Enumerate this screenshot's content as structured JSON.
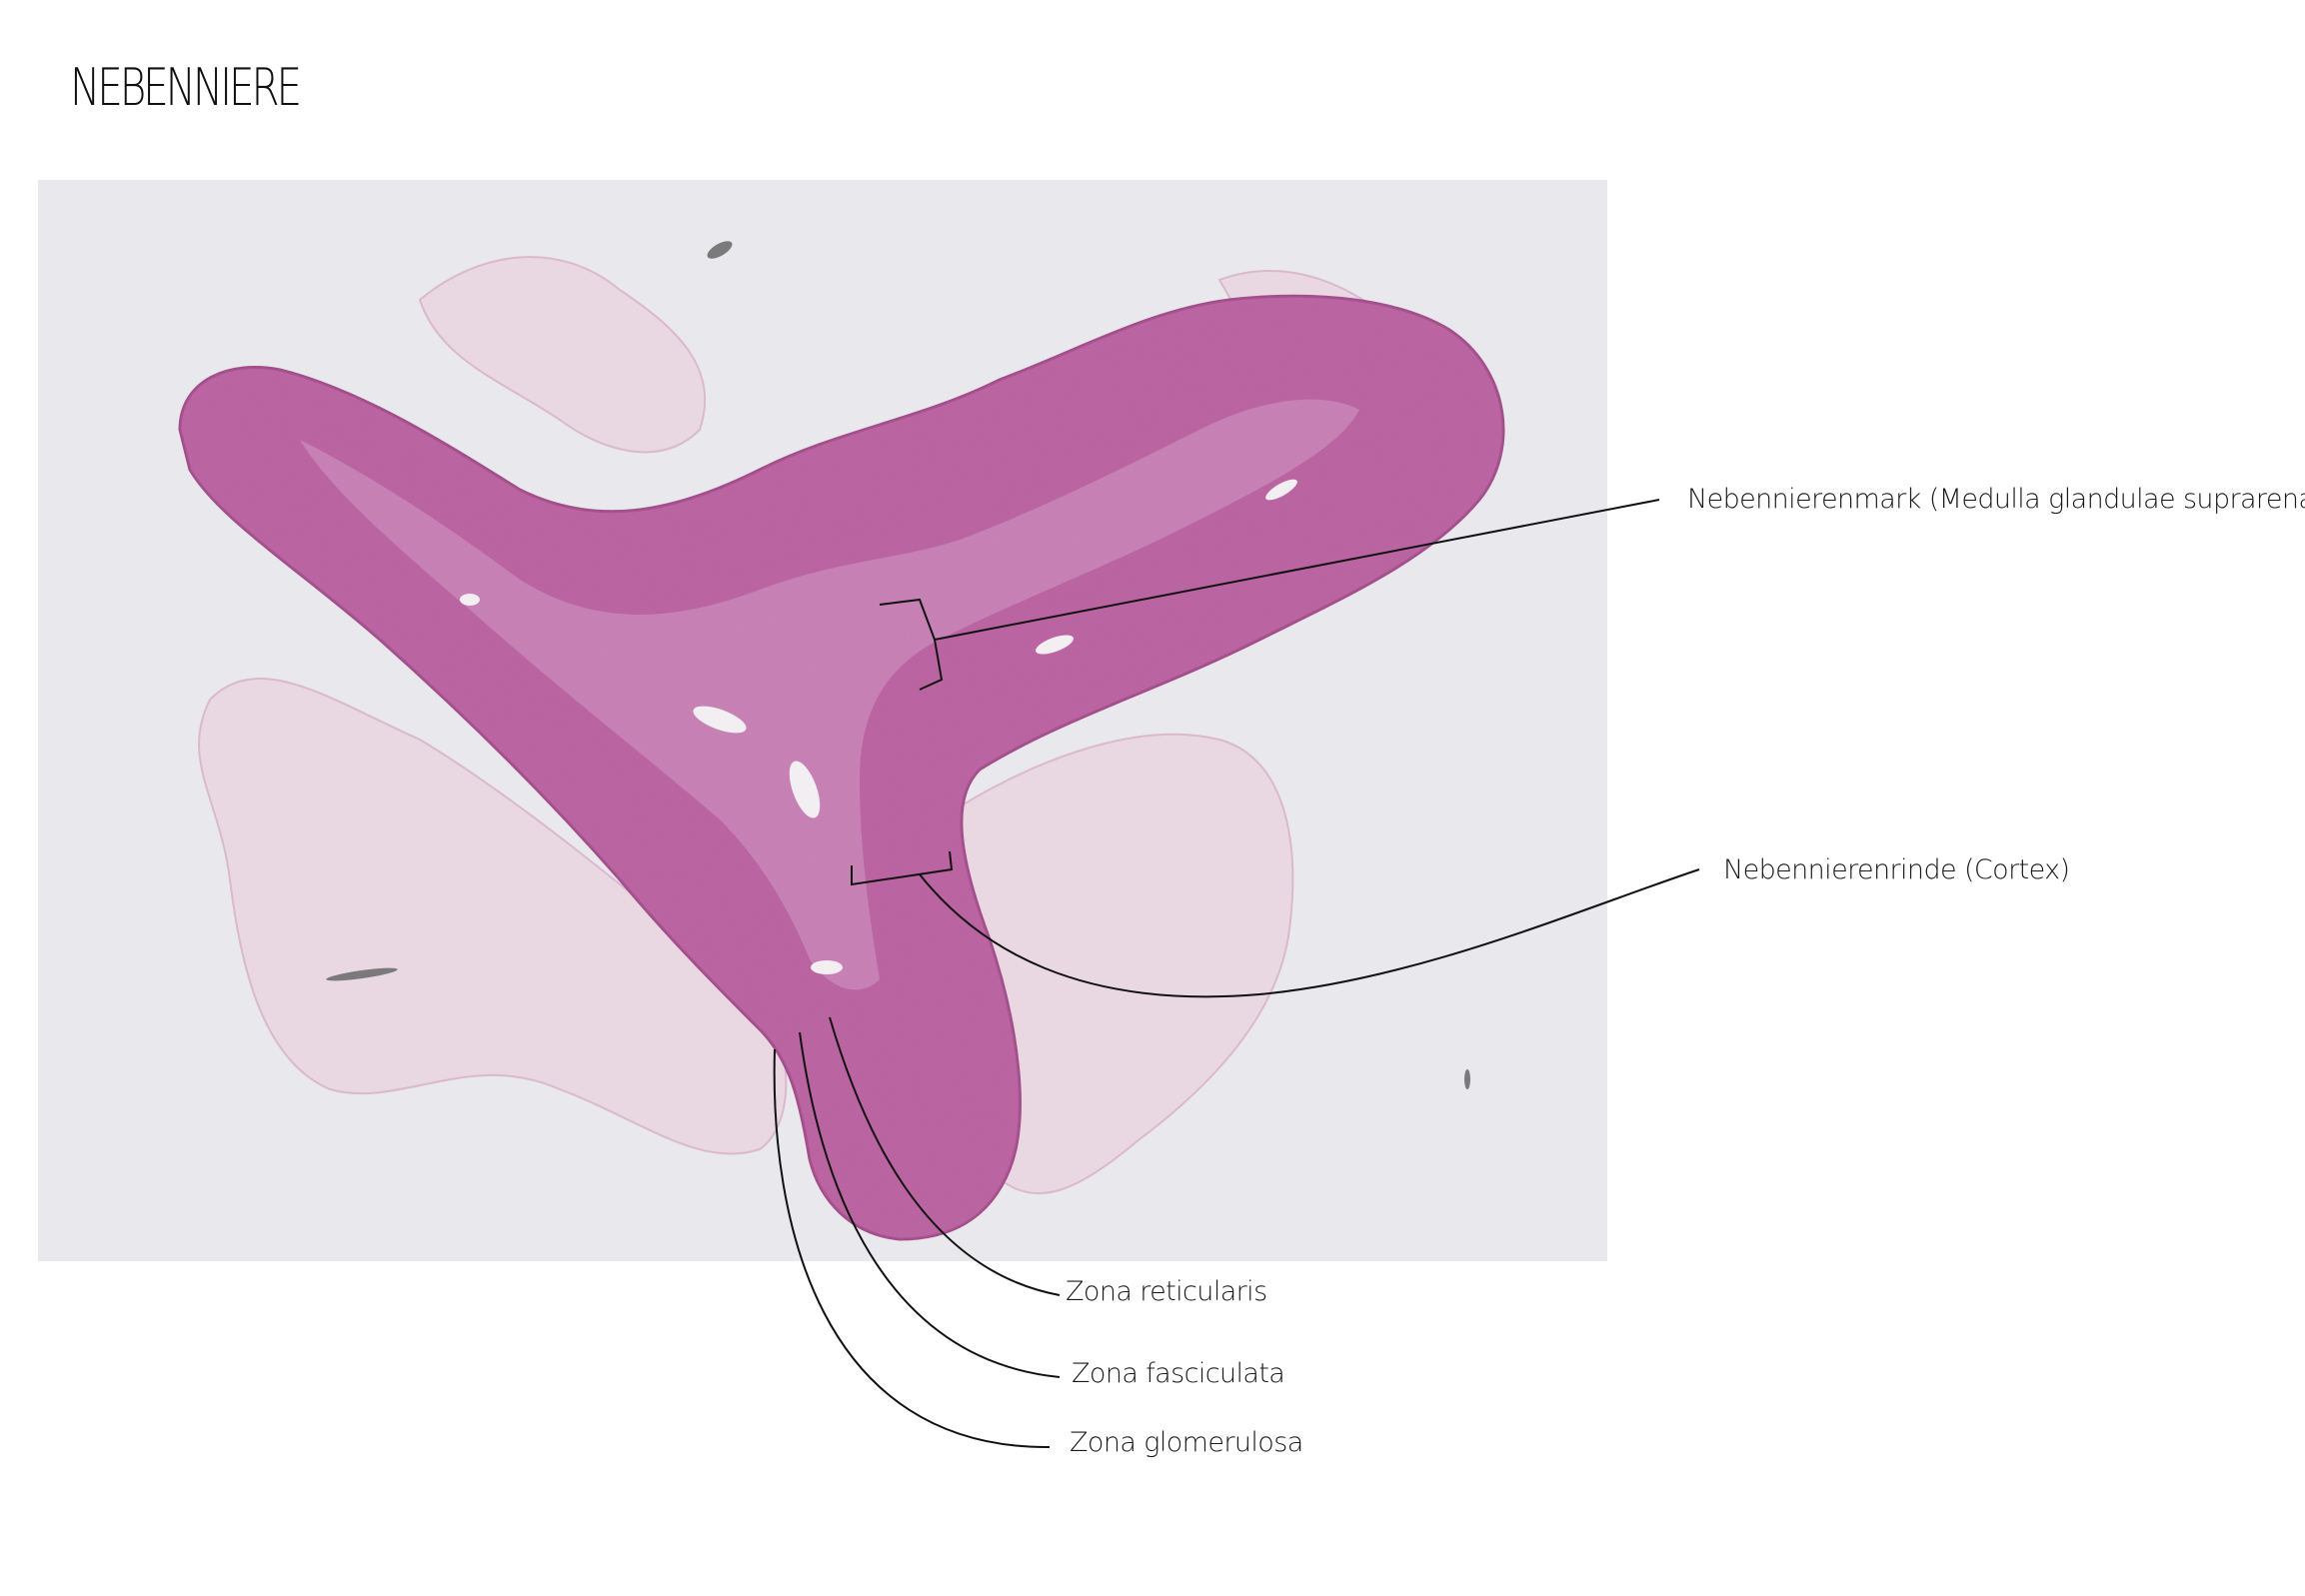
{
  "title": "NEBENNIERE",
  "labels": {
    "medulla": "Nebennierenmark (Medulla glandulae suprarenalis)",
    "cortex": "Nebennierenrinde (Cortex)",
    "reticularis": "Zona reticularis",
    "fasciculata": "Zona fasciculata",
    "glomerulosa": "Zona glomerulosa"
  },
  "colors": {
    "slide_background": "#e9e8ec",
    "tissue_outer": "#c77aac",
    "tissue_cortex": "#b55b95",
    "tissue_medulla": "#c07ab0",
    "connective_tissue": "#ead6e2",
    "leader_lines": "#111111"
  }
}
